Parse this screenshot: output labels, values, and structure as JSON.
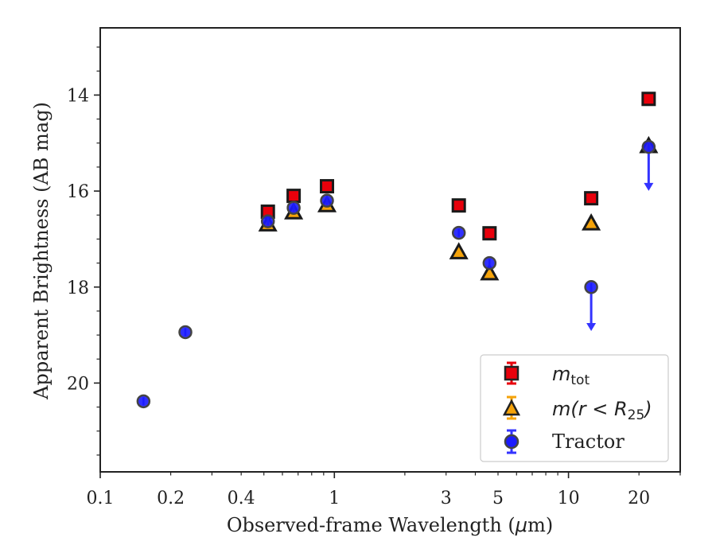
{
  "chart_data": {
    "type": "scatter",
    "xscale": "log",
    "xlim": [
      0.1,
      30
    ],
    "ylim": [
      21.85,
      12.6
    ],
    "y_inverted": true,
    "xlabel_parts": [
      "Observed-frame Wavelength (",
      "μ",
      "m)"
    ],
    "ylabel": "Apparent Brightness (AB mag)",
    "x_ticks": [
      {
        "value": 0.1,
        "label": "0.1"
      },
      {
        "value": 0.2,
        "label": "0.2"
      },
      {
        "value": 0.4,
        "label": "0.4"
      },
      {
        "value": 1,
        "label": "1"
      },
      {
        "value": 3,
        "label": "3"
      },
      {
        "value": 5,
        "label": "5"
      },
      {
        "value": 10,
        "label": "10"
      },
      {
        "value": 20,
        "label": "20"
      }
    ],
    "y_ticks": [
      {
        "value": 14,
        "label": "14"
      },
      {
        "value": 16,
        "label": "16"
      },
      {
        "value": 18,
        "label": "18"
      },
      {
        "value": 20,
        "label": "20"
      }
    ],
    "legend_position": "lower right",
    "series": [
      {
        "name": "m_tot",
        "legend_parts": [
          "m",
          "tot"
        ],
        "marker": "square",
        "face_color": "#e8000b",
        "error_color": "#e8000b",
        "points": [
          {
            "x": 0.52,
            "y": 16.43
          },
          {
            "x": 0.67,
            "y": 16.1
          },
          {
            "x": 0.93,
            "y": 15.9
          },
          {
            "x": 3.4,
            "y": 16.3
          },
          {
            "x": 4.6,
            "y": 16.88
          },
          {
            "x": 12.5,
            "y": 16.15
          },
          {
            "x": 22.0,
            "y": 14.08
          }
        ]
      },
      {
        "name": "m(r < R_25)",
        "legend_parts": [
          "m(r < R",
          "25",
          ")"
        ],
        "marker": "triangle",
        "face_color": "#f5a30a",
        "error_color": "#f5a30a",
        "points": [
          {
            "x": 0.52,
            "y": 16.7
          },
          {
            "x": 0.67,
            "y": 16.45
          },
          {
            "x": 0.93,
            "y": 16.3
          },
          {
            "x": 3.4,
            "y": 17.28
          },
          {
            "x": 4.6,
            "y": 17.72
          },
          {
            "x": 12.5,
            "y": 16.68
          },
          {
            "x": 22.0,
            "y": 15.07
          }
        ]
      },
      {
        "name": "Tractor",
        "legend_parts": [
          "Tractor"
        ],
        "marker": "circle",
        "face_color": "#1a1aff",
        "error_color": "#3333ff",
        "points": [
          {
            "x": 0.153,
            "y": 20.38
          },
          {
            "x": 0.231,
            "y": 18.94
          },
          {
            "x": 0.52,
            "y": 16.63
          },
          {
            "x": 0.67,
            "y": 16.35
          },
          {
            "x": 0.93,
            "y": 16.2
          },
          {
            "x": 3.4,
            "y": 16.87
          },
          {
            "x": 4.6,
            "y": 17.5
          },
          {
            "x": 12.5,
            "y": 18.0,
            "upper_limit": true
          },
          {
            "x": 22.0,
            "y": 15.08,
            "upper_limit": true
          }
        ]
      }
    ]
  }
}
